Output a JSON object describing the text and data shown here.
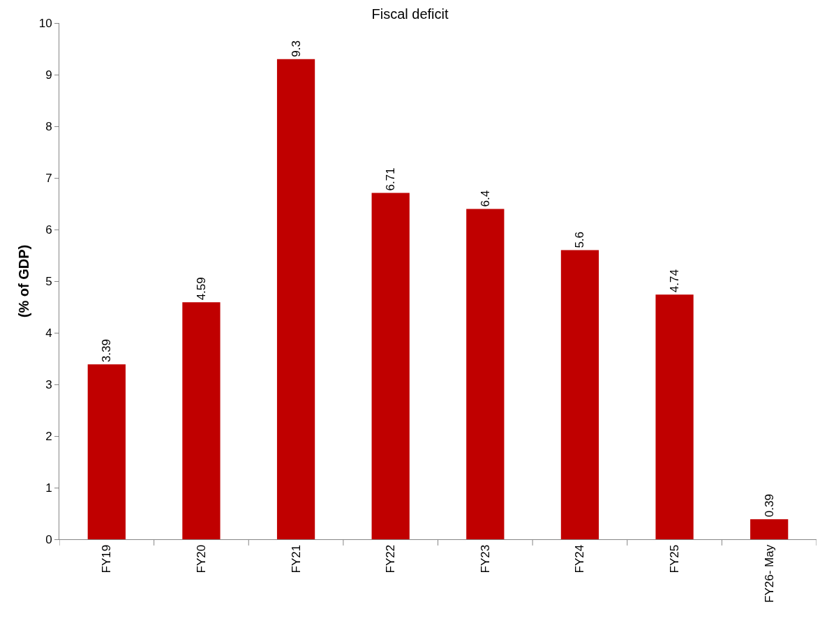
{
  "chart_data": {
    "type": "bar",
    "title": "Fiscal deficit",
    "ylabel": "(% of GDP)",
    "categories": [
      "FY19",
      "FY20",
      "FY21",
      "FY22",
      "FY23",
      "FY24",
      "FY25",
      "FY26- May"
    ],
    "values": [
      3.39,
      4.59,
      9.3,
      6.71,
      6.4,
      5.6,
      4.74,
      0.39
    ],
    "color": "#c00000",
    "ylim": [
      0,
      10
    ],
    "yticks": [
      0,
      1,
      2,
      3,
      4,
      5,
      6,
      7,
      8,
      9,
      10
    ],
    "data_labels": true,
    "legend": false
  }
}
